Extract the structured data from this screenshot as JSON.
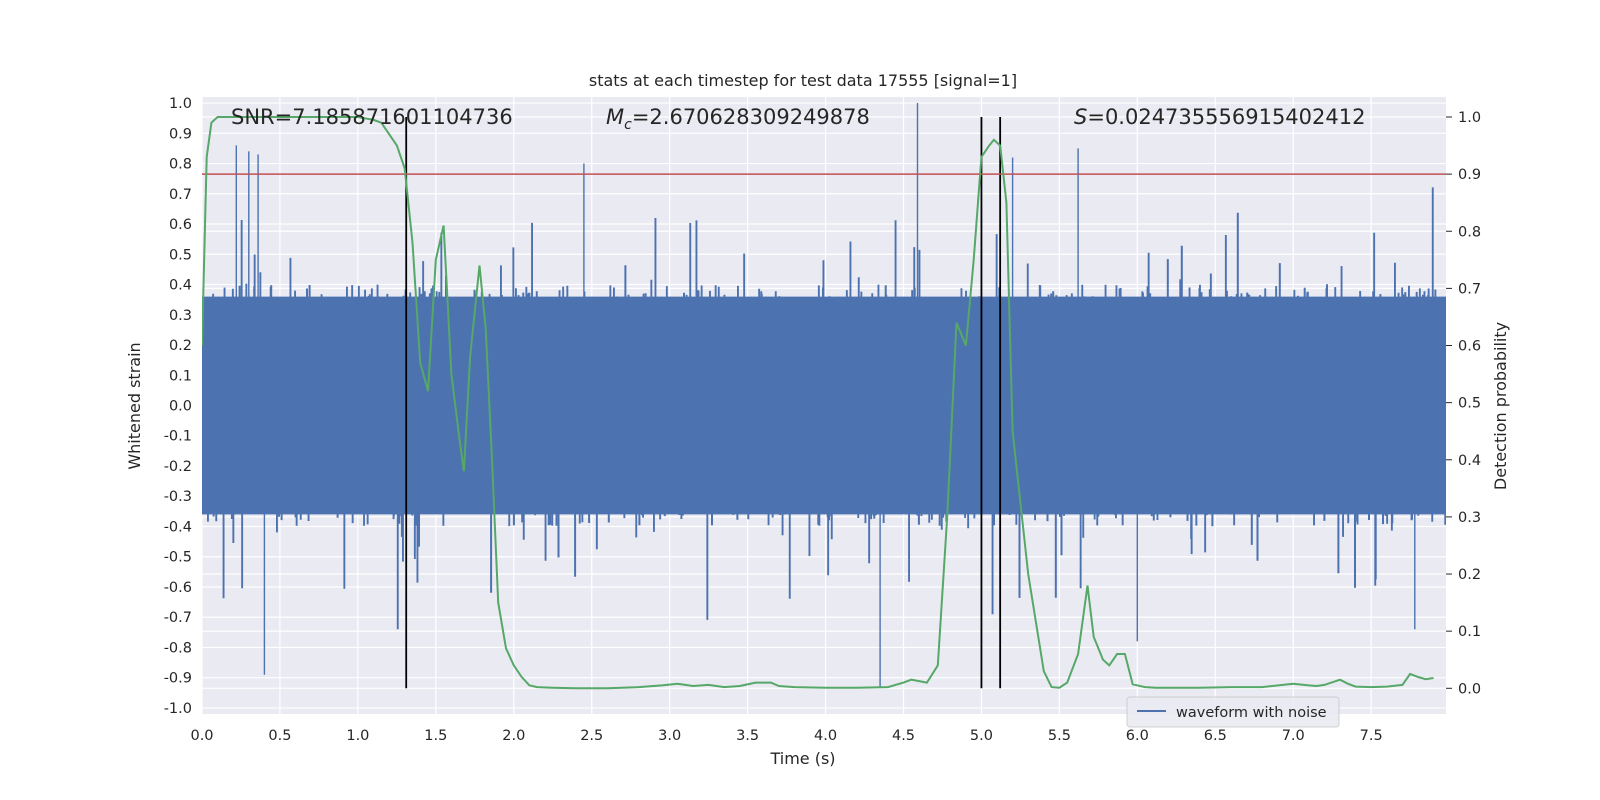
{
  "chart_data": {
    "type": "line",
    "title": "stats at each timestep for test data 17555 [signal=1]",
    "xlabel": "Time (s)",
    "ylabel": "Whitened strain",
    "y2label": "Detection probability",
    "xlim": [
      0.0,
      7.98
    ],
    "ylim": [
      -1.02,
      1.02
    ],
    "y2lim": [
      -0.045,
      1.035
    ],
    "x_ticks": [
      "0.0",
      "0.5",
      "1.0",
      "1.5",
      "2.0",
      "2.5",
      "3.0",
      "3.5",
      "4.0",
      "4.5",
      "5.0",
      "5.5",
      "6.0",
      "6.5",
      "7.0",
      "7.5"
    ],
    "y_ticks": [
      "1.0",
      "0.9",
      "0.8",
      "0.7",
      "0.6",
      "0.5",
      "0.4",
      "0.3",
      "0.2",
      "0.1",
      "0.0",
      "-0.1",
      "-0.2",
      "-0.3",
      "-0.4",
      "-0.5",
      "-0.6",
      "-0.7",
      "-0.8",
      "-0.9",
      "-1.0"
    ],
    "y2_ticks": [
      "1.0",
      "0.9",
      "0.8",
      "0.7",
      "0.6",
      "0.5",
      "0.4",
      "0.3",
      "0.2",
      "0.1",
      "0.0"
    ],
    "annotations": {
      "snr": "SNR=7.185871601104736",
      "mc_symbol": "M",
      "mc_sub": "c",
      "mc_value": "=2.670628309249878",
      "s_symbol": "S",
      "s_value": "=0.024735556915402412"
    },
    "series": [
      {
        "name": "waveform with noise",
        "color": "#4c72b0",
        "axis": "left",
        "description": "whitened strain noise, band roughly -0.45 to 0.45 with spikes to about +/-0.9",
        "spikes": [
          {
            "x": 0.22,
            "y": 0.86
          },
          {
            "x": 0.3,
            "y": 0.84
          },
          {
            "x": 0.36,
            "y": 0.83
          },
          {
            "x": 0.4,
            "y": -0.89
          },
          {
            "x": 2.45,
            "y": 0.8
          },
          {
            "x": 4.35,
            "y": -0.93
          },
          {
            "x": 4.59,
            "y": 1.0
          },
          {
            "x": 5.2,
            "y": 0.82
          },
          {
            "x": 5.62,
            "y": 0.85
          },
          {
            "x": 6.0,
            "y": -0.78
          },
          {
            "x": 7.78,
            "y": -0.74
          }
        ]
      },
      {
        "name": "detection probability",
        "color": "#55a868",
        "axis": "right",
        "x": [
          0.0,
          0.03,
          0.06,
          0.1,
          0.15,
          0.3,
          0.5,
          0.7,
          0.9,
          1.0,
          1.1,
          1.15,
          1.2,
          1.25,
          1.3,
          1.35,
          1.4,
          1.45,
          1.5,
          1.55,
          1.6,
          1.65,
          1.68,
          1.72,
          1.78,
          1.82,
          1.86,
          1.9,
          1.95,
          2.0,
          2.05,
          2.1,
          2.15,
          2.25,
          2.4,
          2.6,
          2.8,
          2.95,
          3.05,
          3.15,
          3.25,
          3.35,
          3.45,
          3.55,
          3.65,
          3.7,
          3.8,
          4.0,
          4.2,
          4.4,
          4.5,
          4.55,
          4.65,
          4.72,
          4.78,
          4.84,
          4.9,
          4.95,
          5.0,
          5.05,
          5.08,
          5.12,
          5.16,
          5.2,
          5.3,
          5.4,
          5.45,
          5.5,
          5.55,
          5.62,
          5.68,
          5.72,
          5.78,
          5.82,
          5.87,
          5.92,
          5.97,
          6.05,
          6.12,
          6.18,
          6.25,
          6.4,
          6.6,
          6.8,
          7.0,
          7.1,
          7.15,
          7.2,
          7.3,
          7.35,
          7.4,
          7.5,
          7.6,
          7.7,
          7.75,
          7.8,
          7.85,
          7.9
        ],
        "values": [
          0.6,
          0.93,
          0.99,
          1.0,
          1.0,
          1.0,
          1.0,
          1.0,
          1.0,
          1.0,
          0.995,
          0.99,
          0.97,
          0.95,
          0.91,
          0.78,
          0.57,
          0.52,
          0.75,
          0.81,
          0.55,
          0.44,
          0.38,
          0.58,
          0.74,
          0.63,
          0.4,
          0.15,
          0.07,
          0.04,
          0.02,
          0.005,
          0.002,
          0.001,
          0.0,
          0.0,
          0.002,
          0.005,
          0.008,
          0.004,
          0.006,
          0.002,
          0.004,
          0.01,
          0.01,
          0.004,
          0.002,
          0.001,
          0.001,
          0.002,
          0.01,
          0.015,
          0.01,
          0.04,
          0.3,
          0.64,
          0.6,
          0.75,
          0.93,
          0.95,
          0.96,
          0.95,
          0.85,
          0.45,
          0.2,
          0.03,
          0.002,
          0.001,
          0.01,
          0.06,
          0.18,
          0.09,
          0.05,
          0.04,
          0.06,
          0.06,
          0.007,
          0.002,
          0.001,
          0.001,
          0.001,
          0.001,
          0.002,
          0.002,
          0.008,
          0.005,
          0.004,
          0.006,
          0.015,
          0.008,
          0.003,
          0.002,
          0.003,
          0.006,
          0.025,
          0.02,
          0.016,
          0.018
        ]
      }
    ],
    "threshold": {
      "axis": "right",
      "value": 0.9,
      "color": "#c44e52"
    },
    "vertical_lines": [
      1.31,
      5.0,
      5.12
    ],
    "legend": {
      "label": "waveform with noise",
      "placement": "lower-right"
    }
  }
}
